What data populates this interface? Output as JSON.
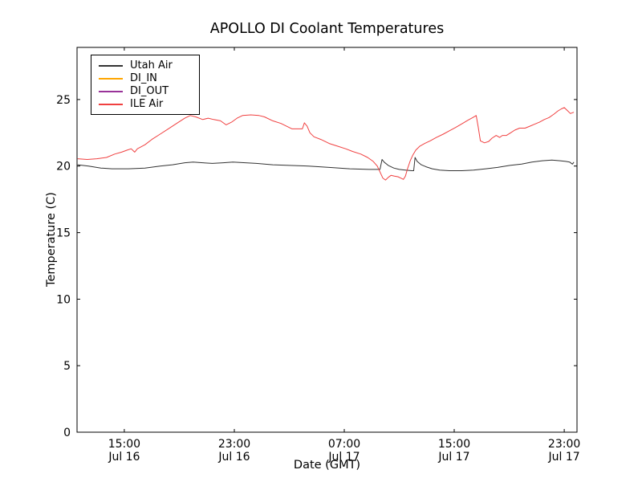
{
  "chart_data": {
    "type": "line",
    "title": "APOLLO DI Coolant Temperatures",
    "xlabel": "Date (GMT)",
    "ylabel": "Temperature (C)",
    "grid": false,
    "legend_position": "upper left",
    "x_unit": "hours since Jul 16 00:00 GMT",
    "xlim": [
      11.56,
      47.93
    ],
    "ylim": [
      0,
      28.92
    ],
    "y_ticks": [
      0,
      5,
      10,
      15,
      20,
      25
    ],
    "x_ticks": [
      {
        "value": 15,
        "time": "15:00",
        "date": "Jul 16"
      },
      {
        "value": 23,
        "time": "23:00",
        "date": "Jul 16"
      },
      {
        "value": 31,
        "time": "07:00",
        "date": "Jul 17"
      },
      {
        "value": 39,
        "time": "15:00",
        "date": "Jul 17"
      },
      {
        "value": 47,
        "time": "23:00",
        "date": "Jul 17"
      }
    ],
    "series": [
      {
        "name": "Utah Air",
        "color": "#333333",
        "points": [
          [
            11.6,
            20.1
          ],
          [
            12.4,
            20.0
          ],
          [
            13.3,
            19.85
          ],
          [
            14.1,
            19.8
          ],
          [
            15.3,
            19.8
          ],
          [
            16.5,
            19.85
          ],
          [
            17.6,
            20.0
          ],
          [
            18.5,
            20.1
          ],
          [
            19.4,
            20.25
          ],
          [
            20.0,
            20.3
          ],
          [
            20.7,
            20.25
          ],
          [
            21.4,
            20.2
          ],
          [
            22.2,
            20.25
          ],
          [
            22.9,
            20.3
          ],
          [
            23.8,
            20.25
          ],
          [
            24.6,
            20.2
          ],
          [
            25.8,
            20.1
          ],
          [
            27.0,
            20.05
          ],
          [
            28.4,
            20.0
          ],
          [
            29.9,
            19.9
          ],
          [
            31.4,
            19.8
          ],
          [
            32.8,
            19.75
          ],
          [
            33.6,
            19.75
          ],
          [
            33.75,
            20.5
          ],
          [
            33.9,
            20.3
          ],
          [
            34.2,
            20.05
          ],
          [
            34.6,
            19.85
          ],
          [
            35.0,
            19.75
          ],
          [
            35.45,
            19.7
          ],
          [
            35.9,
            19.65
          ],
          [
            36.05,
            19.65
          ],
          [
            36.15,
            20.65
          ],
          [
            36.3,
            20.35
          ],
          [
            36.6,
            20.1
          ],
          [
            36.95,
            19.95
          ],
          [
            37.4,
            19.8
          ],
          [
            37.95,
            19.7
          ],
          [
            38.65,
            19.65
          ],
          [
            39.55,
            19.65
          ],
          [
            40.4,
            19.7
          ],
          [
            41.3,
            19.8
          ],
          [
            42.15,
            19.9
          ],
          [
            43.05,
            20.05
          ],
          [
            43.9,
            20.15
          ],
          [
            44.65,
            20.3
          ],
          [
            45.4,
            20.4
          ],
          [
            46.1,
            20.45
          ],
          [
            46.7,
            20.4
          ],
          [
            47.1,
            20.35
          ],
          [
            47.4,
            20.3
          ],
          [
            47.6,
            20.15
          ],
          [
            47.7,
            20.3
          ]
        ]
      },
      {
        "name": "DI_IN",
        "color": "#ffa500",
        "points": []
      },
      {
        "name": "DI_OUT",
        "color": "#993399",
        "points": []
      },
      {
        "name": "ILE Air",
        "color": "#f04040",
        "points": [
          [
            11.6,
            20.55
          ],
          [
            12.3,
            20.5
          ],
          [
            13.0,
            20.55
          ],
          [
            13.7,
            20.65
          ],
          [
            14.3,
            20.9
          ],
          [
            14.8,
            21.05
          ],
          [
            15.2,
            21.2
          ],
          [
            15.5,
            21.3
          ],
          [
            15.75,
            21.05
          ],
          [
            15.95,
            21.3
          ],
          [
            16.5,
            21.6
          ],
          [
            17.0,
            22.0
          ],
          [
            17.6,
            22.4
          ],
          [
            18.2,
            22.8
          ],
          [
            18.8,
            23.2
          ],
          [
            19.4,
            23.6
          ],
          [
            19.8,
            23.8
          ],
          [
            20.2,
            23.7
          ],
          [
            20.7,
            23.5
          ],
          [
            21.1,
            23.6
          ],
          [
            21.5,
            23.5
          ],
          [
            22.0,
            23.4
          ],
          [
            22.4,
            23.1
          ],
          [
            22.8,
            23.3
          ],
          [
            23.2,
            23.6
          ],
          [
            23.6,
            23.8
          ],
          [
            24.2,
            23.85
          ],
          [
            24.8,
            23.8
          ],
          [
            25.2,
            23.7
          ],
          [
            25.8,
            23.4
          ],
          [
            26.4,
            23.2
          ],
          [
            26.9,
            22.95
          ],
          [
            27.2,
            22.8
          ],
          [
            27.95,
            22.8
          ],
          [
            28.1,
            23.25
          ],
          [
            28.3,
            23.0
          ],
          [
            28.5,
            22.5
          ],
          [
            28.8,
            22.2
          ],
          [
            29.3,
            22.0
          ],
          [
            29.9,
            21.7
          ],
          [
            30.5,
            21.5
          ],
          [
            31.1,
            21.3
          ],
          [
            31.6,
            21.1
          ],
          [
            32.2,
            20.9
          ],
          [
            32.7,
            20.65
          ],
          [
            33.1,
            20.35
          ],
          [
            33.4,
            20.0
          ],
          [
            33.65,
            19.45
          ],
          [
            33.8,
            19.1
          ],
          [
            34.0,
            18.95
          ],
          [
            34.2,
            19.15
          ],
          [
            34.4,
            19.3
          ],
          [
            34.65,
            19.25
          ],
          [
            34.9,
            19.2
          ],
          [
            35.1,
            19.1
          ],
          [
            35.3,
            19.0
          ],
          [
            35.45,
            19.25
          ],
          [
            35.6,
            19.8
          ],
          [
            35.8,
            20.4
          ],
          [
            36.0,
            20.85
          ],
          [
            36.2,
            21.2
          ],
          [
            36.5,
            21.5
          ],
          [
            36.85,
            21.7
          ],
          [
            37.25,
            21.9
          ],
          [
            37.7,
            22.15
          ],
          [
            38.2,
            22.4
          ],
          [
            38.65,
            22.65
          ],
          [
            39.1,
            22.9
          ],
          [
            39.6,
            23.2
          ],
          [
            40.0,
            23.45
          ],
          [
            40.35,
            23.65
          ],
          [
            40.6,
            23.8
          ],
          [
            40.75,
            22.9
          ],
          [
            40.9,
            21.9
          ],
          [
            41.2,
            21.75
          ],
          [
            41.5,
            21.85
          ],
          [
            41.75,
            22.1
          ],
          [
            42.05,
            22.3
          ],
          [
            42.3,
            22.15
          ],
          [
            42.5,
            22.3
          ],
          [
            42.8,
            22.3
          ],
          [
            43.1,
            22.5
          ],
          [
            43.4,
            22.7
          ],
          [
            43.75,
            22.85
          ],
          [
            44.15,
            22.85
          ],
          [
            44.5,
            23.0
          ],
          [
            44.85,
            23.15
          ],
          [
            45.2,
            23.3
          ],
          [
            45.55,
            23.5
          ],
          [
            45.9,
            23.65
          ],
          [
            46.25,
            23.9
          ],
          [
            46.55,
            24.15
          ],
          [
            46.8,
            24.3
          ],
          [
            47.0,
            24.4
          ],
          [
            47.25,
            24.15
          ],
          [
            47.45,
            23.95
          ],
          [
            47.7,
            24.05
          ]
        ]
      }
    ]
  }
}
